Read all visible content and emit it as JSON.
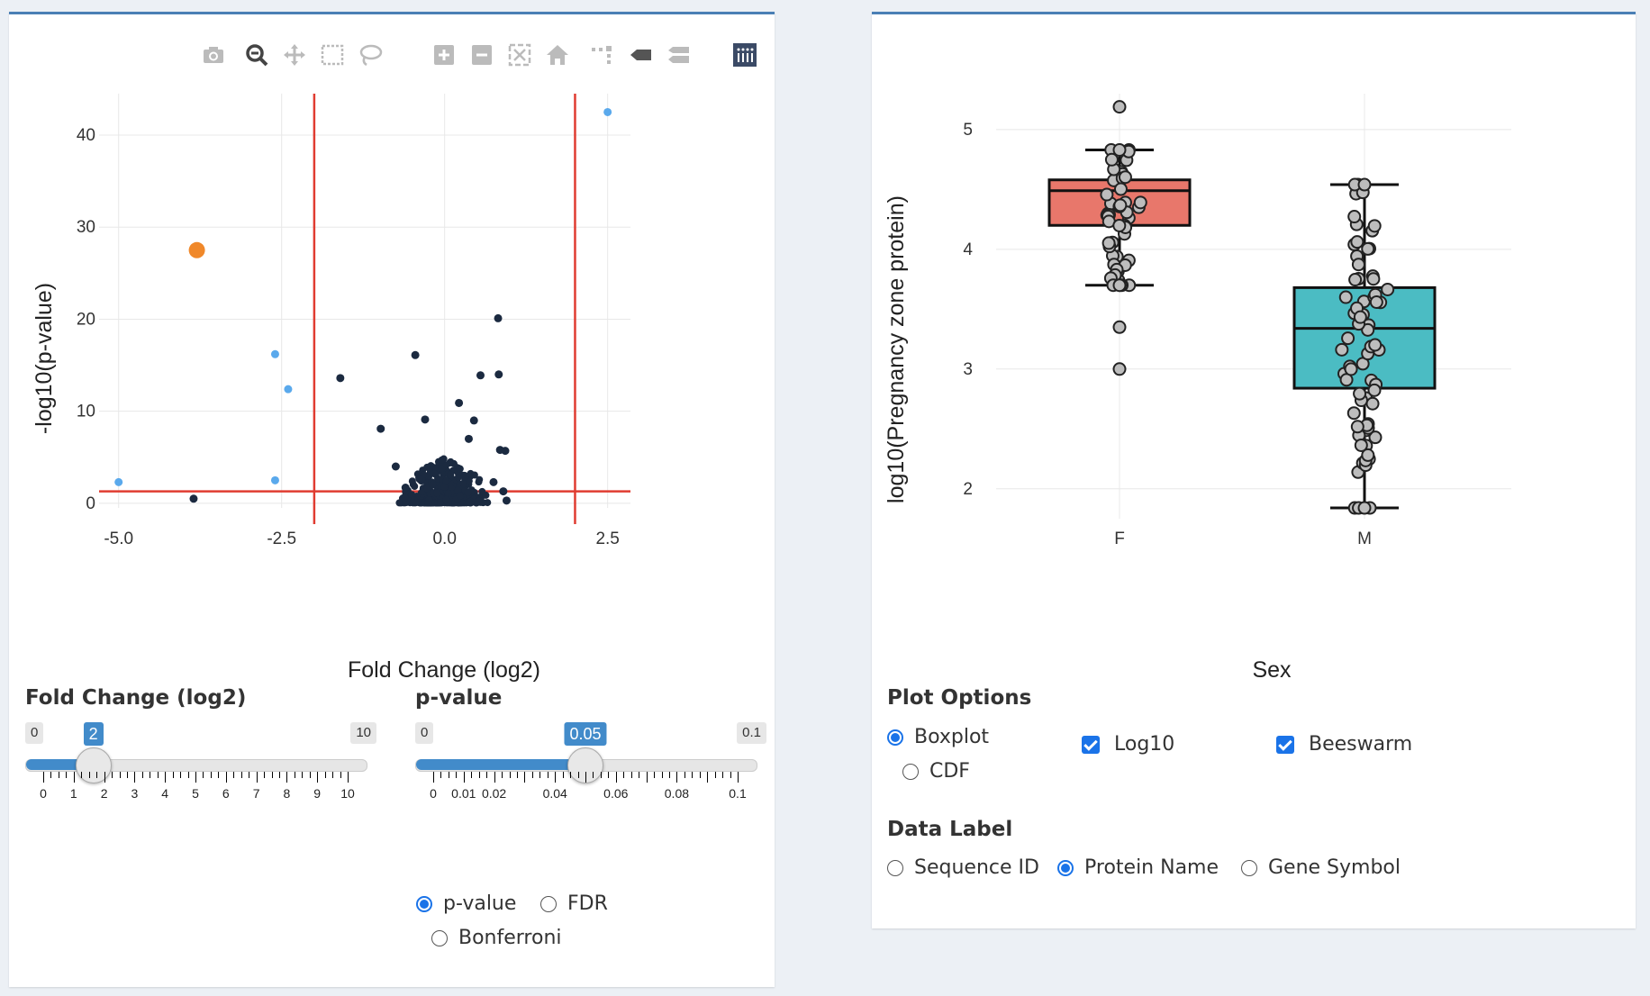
{
  "volcano": {
    "toolbar": [
      "camera-icon",
      "zoom-icon",
      "pan-icon",
      "box-select-icon",
      "lasso-select-icon",
      "zoom-in-icon",
      "zoom-out-icon",
      "autoscale-icon",
      "reset-axes-icon",
      "spike-lines-icon",
      "hover-closest-icon",
      "hover-compare-icon",
      "plotly-logo-icon"
    ],
    "xlabel": "Fold Change (log2)",
    "ylabel": "-log10(p-value)",
    "xticks": [
      "-5.0",
      "-2.5",
      "0.0",
      "2.5"
    ],
    "yticks": [
      "0",
      "10",
      "20",
      "30",
      "40"
    ],
    "colors": {
      "dark": "#1b2a40",
      "light": "#5aa9ec",
      "highlight": "#f0882a",
      "threshold": "#e03c31"
    }
  },
  "chart_data": [
    {
      "type": "scatter",
      "xlabel": "Fold Change (log2)",
      "ylabel": "-log10(p-value)",
      "xlim": [
        -5.3,
        2.85
      ],
      "ylim": [
        -0.5,
        44.5
      ],
      "grid": true,
      "thresholds": {
        "x": [
          -2,
          2
        ],
        "y": 1.3
      },
      "series": [
        {
          "color": "highlight",
          "points": [
            [
              -3.8,
              27.5
            ]
          ]
        },
        {
          "color": "light",
          "points": [
            [
              2.5,
              42.5
            ],
            [
              -2.6,
              16.2
            ],
            [
              -2.4,
              12.4
            ],
            [
              -5.0,
              2.3
            ],
            [
              -2.6,
              2.5
            ]
          ]
        },
        {
          "color": "dark",
          "points": [
            [
              -3.85,
              0.5
            ],
            [
              -1.6,
              13.6
            ],
            [
              -0.45,
              16.1
            ],
            [
              0.82,
              20.1
            ],
            [
              0.55,
              13.9
            ],
            [
              0.83,
              14.0
            ],
            [
              0.22,
              10.9
            ],
            [
              -0.98,
              8.1
            ],
            [
              -0.3,
              9.1
            ],
            [
              0.45,
              9.0
            ],
            [
              0.37,
              7.0
            ],
            [
              0.85,
              5.8
            ],
            [
              0.93,
              5.7
            ],
            [
              0.75,
              2.3
            ],
            [
              0.9,
              1.3
            ],
            [
              0.95,
              0.3
            ],
            [
              -0.75,
              4.0
            ],
            [
              -0.6,
              1.7
            ],
            [
              -0.62,
              0.6
            ]
          ]
        }
      ]
    },
    {
      "type": "box",
      "xlabel": "Sex",
      "ylabel": "log10(Pregnancy zone protein)",
      "categories": [
        "F",
        "M"
      ],
      "ylim": [
        1.75,
        5.3
      ],
      "yticks": [
        "2",
        "3",
        "4",
        "5"
      ],
      "series": [
        {
          "name": "F",
          "color": "#e8776b",
          "whisker_low": 3.7,
          "q1": 4.2,
          "median": 4.49,
          "q3": 4.58,
          "whisker_high": 4.83,
          "outliers": [
            5.19,
            3.35,
            3.0
          ]
        },
        {
          "name": "M",
          "color": "#4bbcc3",
          "whisker_low": 1.84,
          "q1": 2.84,
          "median": 3.34,
          "q3": 3.68,
          "whisker_high": 4.54,
          "outliers": []
        }
      ]
    }
  ],
  "controls": {
    "fc_title": "Fold Change (log2)",
    "fc_slider": {
      "min": "0",
      "max": "10",
      "value": "2",
      "fraction": 0.2,
      "ticks": [
        "0",
        "1",
        "2",
        "3",
        "4",
        "5",
        "6",
        "7",
        "8",
        "9",
        "10"
      ]
    },
    "p_title": "p-value",
    "p_slider": {
      "min": "0",
      "max": "0.1",
      "value": "0.05",
      "fraction": 0.5,
      "ticks": [
        "0",
        "0.01",
        "0.02",
        "0.04",
        "0.06",
        "0.08",
        "0.1"
      ]
    },
    "p_method": {
      "options": [
        "p-value",
        "FDR",
        "Bonferroni"
      ],
      "selected": "p-value"
    }
  },
  "options": {
    "plot_options_title": "Plot Options",
    "plot_type": {
      "options": [
        "Boxplot",
        "CDF"
      ],
      "selected": "Boxplot"
    },
    "log10_label": "Log10",
    "beeswarm_label": "Beeswarm",
    "data_label_title": "Data Label",
    "data_label": {
      "options": [
        "Sequence ID",
        "Protein Name",
        "Gene Symbol"
      ],
      "selected": "Protein Name"
    }
  }
}
